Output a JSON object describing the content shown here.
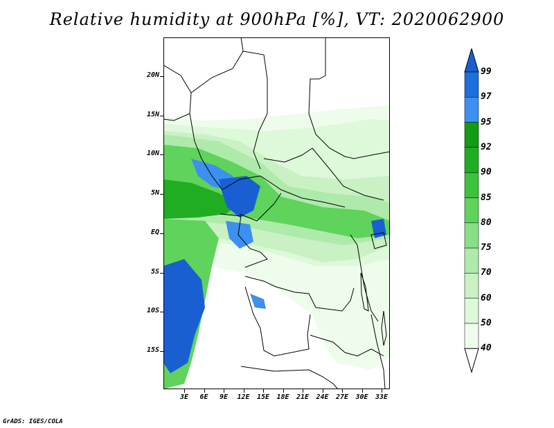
{
  "title": "Relative humidity at 900hPa [%], VT: 2020062900",
  "credit": "GrADS: IGES/COLA",
  "map": {
    "lat_labels": [
      "20N",
      "15N",
      "10N",
      "5N",
      "EQ",
      "5S",
      "10S",
      "15S"
    ],
    "lon_labels": [
      "3E",
      "6E",
      "9E",
      "12E",
      "15E",
      "18E",
      "21E",
      "24E",
      "27E",
      "30E",
      "33E"
    ]
  },
  "colorbar": {
    "labels": [
      "99",
      "97",
      "95",
      "92",
      "90",
      "85",
      "80",
      "75",
      "70",
      "60",
      "50",
      "40"
    ],
    "colors": [
      "#1a5fd1",
      "#1c6fdc",
      "#3d8ff0",
      "#119c14",
      "#20ad22",
      "#3dc23e",
      "#5fd35c",
      "#87e085",
      "#aeeaaa",
      "#c9f1c4",
      "#def8da",
      "#eefceb",
      "#ffffff"
    ]
  }
}
